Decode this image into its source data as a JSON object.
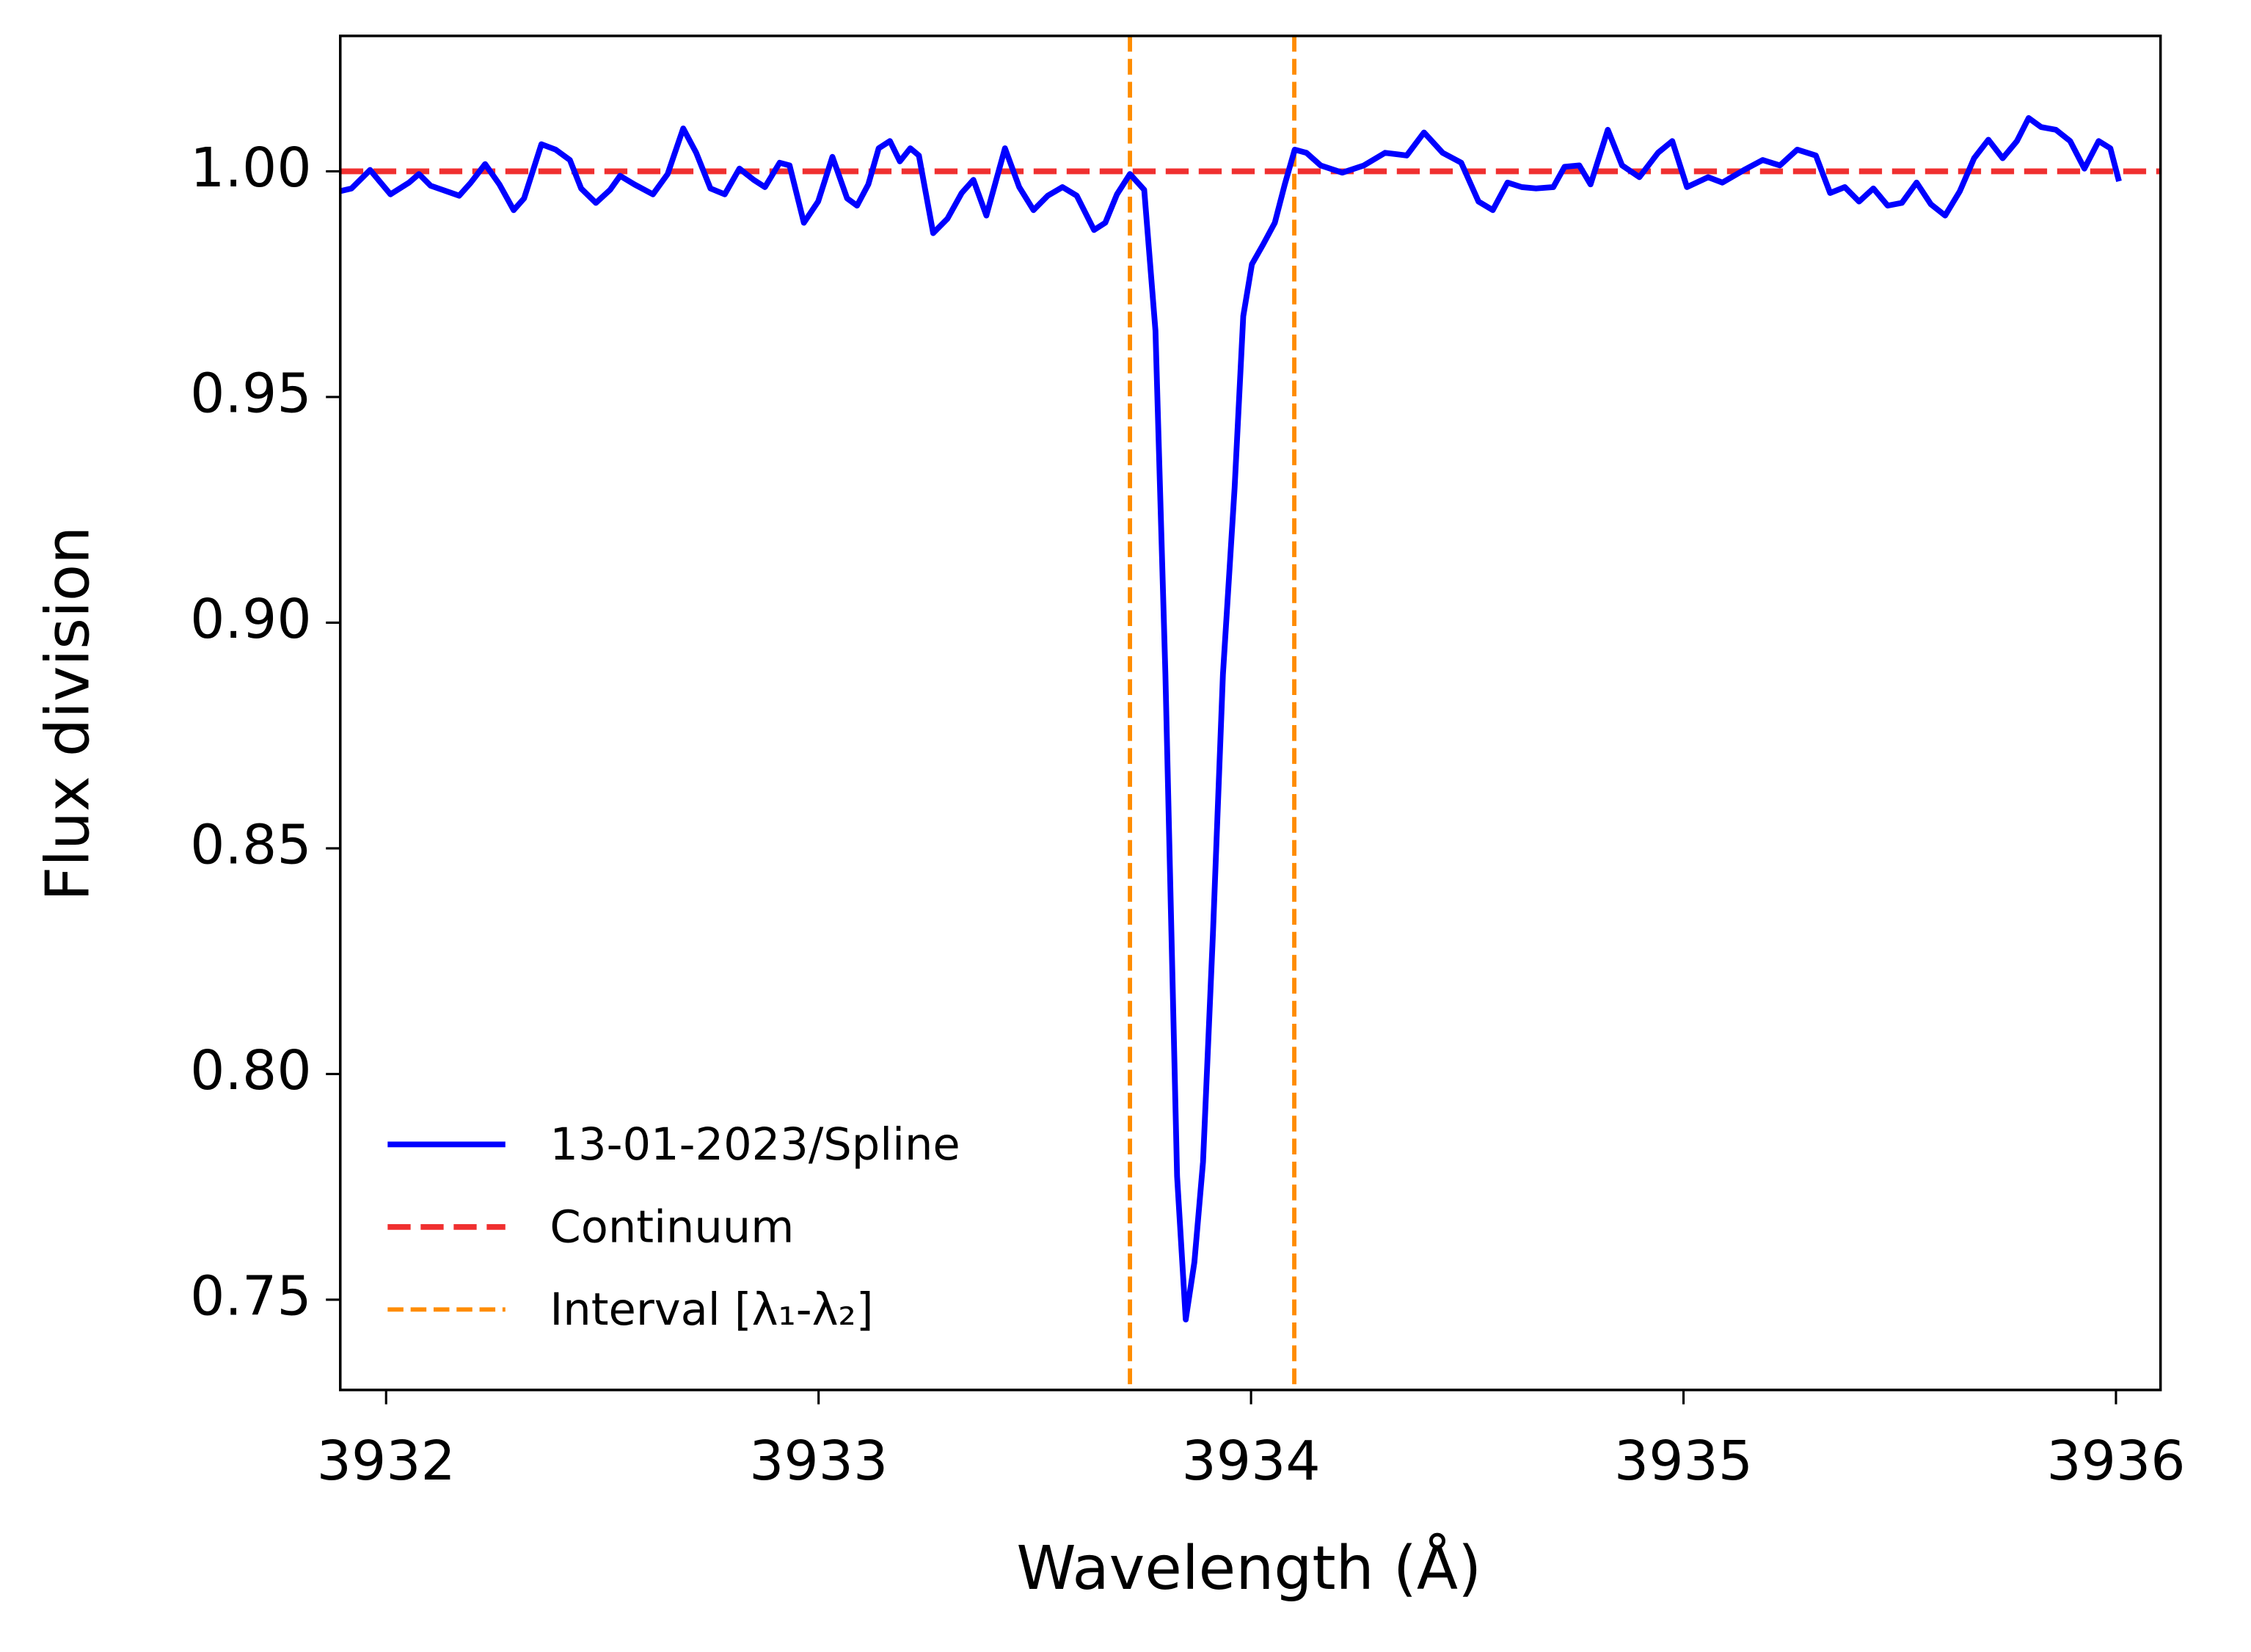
{
  "chart_data": {
    "type": "line",
    "xlabel": "Wavelength (Å)",
    "ylabel": "Flux division",
    "xlim": [
      3931.894,
      3936.103
    ],
    "ylim": [
      0.73,
      1.03
    ],
    "xticks": [
      3932,
      3933,
      3934,
      3935,
      3936
    ],
    "yticks": [
      0.75,
      {
        "value": 0.8,
        "label": "0.80"
      },
      0.85,
      {
        "value": 0.9,
        "label": "0.90"
      },
      0.95,
      {
        "value": 1.0,
        "label": "1.00"
      }
    ],
    "legend": "lower left",
    "x": [
      3931.894,
      3931.92,
      3931.963,
      3932.01,
      3932.053,
      3932.076,
      3932.103,
      3932.169,
      3932.196,
      3932.229,
      3932.262,
      3932.295,
      3932.319,
      3932.359,
      3932.392,
      3932.425,
      3932.451,
      3932.485,
      3932.518,
      3932.541,
      3932.574,
      3932.617,
      3932.651,
      3932.687,
      3932.717,
      3932.75,
      3932.783,
      3932.817,
      3932.85,
      3932.876,
      3932.91,
      3932.933,
      3932.966,
      3932.999,
      3933.032,
      3933.066,
      3933.089,
      3933.115,
      3933.139,
      3933.165,
      3933.188,
      3933.212,
      3933.232,
      3933.265,
      3933.298,
      3933.331,
      3933.358,
      3933.388,
      3933.431,
      3933.464,
      3933.497,
      3933.53,
      3933.564,
      3933.597,
      3933.637,
      3933.663,
      3933.69,
      3933.72,
      3933.753,
      3933.779,
      3933.802,
      3933.829,
      3933.849,
      3933.869,
      3933.889,
      3933.912,
      3933.935,
      3933.962,
      3933.982,
      3934.002,
      3934.028,
      3934.055,
      3934.078,
      3934.101,
      3934.128,
      3934.161,
      3934.211,
      3934.261,
      3934.31,
      3934.36,
      3934.4,
      3934.443,
      3934.486,
      3934.526,
      3934.559,
      3934.593,
      3934.626,
      3934.659,
      3934.699,
      3934.725,
      3934.759,
      3934.785,
      3934.825,
      3934.858,
      3934.898,
      3934.941,
      3934.974,
      3935.008,
      3935.057,
      3935.09,
      3935.14,
      3935.183,
      3935.223,
      3935.263,
      3935.306,
      3935.339,
      3935.373,
      3935.406,
      3935.439,
      3935.472,
      3935.505,
      3935.539,
      3935.572,
      3935.605,
      3935.639,
      3935.672,
      3935.705,
      3935.738,
      3935.771,
      3935.798,
      3935.827,
      3935.861,
      3935.894,
      3935.927,
      3935.96,
      3935.987,
      3936.007
    ],
    "series": [
      {
        "name": "13-01-2023/Spline",
        "color": "#0000ff",
        "values": [
          0.9956,
          0.9962,
          1.0003,
          0.9949,
          0.9975,
          0.9994,
          0.9968,
          0.9946,
          0.9975,
          1.0016,
          0.9971,
          0.9914,
          0.994,
          1.006,
          1.0048,
          1.0025,
          0.9962,
          0.993,
          0.9959,
          0.999,
          0.9971,
          0.9949,
          0.9994,
          1.0095,
          1.0041,
          0.9962,
          0.9949,
          1.0006,
          0.9981,
          0.9965,
          1.0019,
          1.0013,
          0.9886,
          0.9933,
          1.0032,
          0.994,
          0.9924,
          0.9971,
          1.0051,
          1.0067,
          1.0022,
          1.0051,
          1.0035,
          0.9863,
          0.9895,
          0.9952,
          0.9981,
          0.9902,
          1.0051,
          0.9965,
          0.9914,
          0.9946,
          0.9965,
          0.9946,
          0.987,
          0.9886,
          0.9949,
          0.9994,
          0.9959,
          0.9647,
          0.8885,
          0.7773,
          0.7456,
          0.7583,
          0.7805,
          0.8313,
          0.8885,
          0.9298,
          0.9679,
          0.9794,
          0.9838,
          0.9886,
          0.9971,
          1.0048,
          1.0041,
          1.0013,
          0.9997,
          1.0013,
          1.0041,
          1.0035,
          1.0086,
          1.0041,
          1.0019,
          0.9933,
          0.9914,
          0.9975,
          0.9965,
          0.9962,
          0.9965,
          1.001,
          1.0013,
          0.9971,
          1.0092,
          1.0013,
          0.9987,
          1.0041,
          1.0067,
          0.9965,
          0.9987,
          0.9975,
          1.0003,
          1.0025,
          1.0013,
          1.0048,
          1.0035,
          0.9952,
          0.9965,
          0.9933,
          0.9962,
          0.9924,
          0.993,
          0.9975,
          0.9927,
          0.9902,
          0.9956,
          1.0029,
          1.007,
          1.0029,
          1.0067,
          1.0118,
          1.0098,
          1.0092,
          1.0067,
          1.0006,
          1.0067,
          1.0051,
          0.9978
        ]
      }
    ],
    "continuum": {
      "name": "Continuum",
      "color": "#f03030",
      "value": 1.0
    },
    "interval": {
      "name": "Interval [λ₁-λ₂]",
      "color": "#ff8c00",
      "values": [
        3933.72,
        3934.1
      ]
    }
  }
}
